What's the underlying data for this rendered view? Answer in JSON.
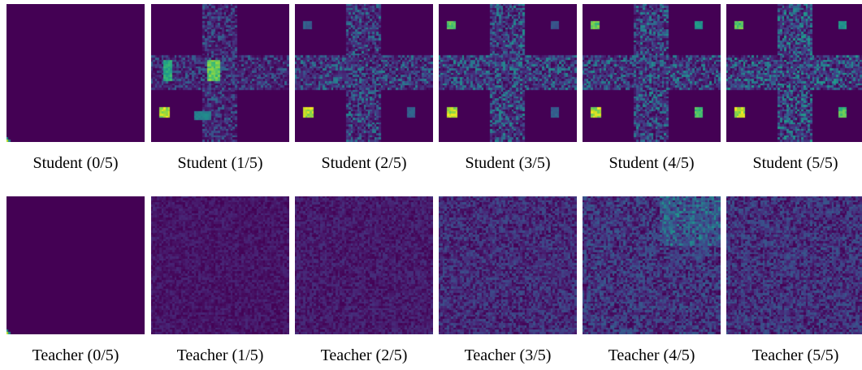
{
  "chart_data": [
    {
      "type": "heatmap",
      "title": "",
      "colormap": "viridis",
      "grid": false,
      "rows": [
        {
          "name": "Student",
          "panels": [
            {
              "label": "Student (0/5)",
              "pattern": "blank",
              "intensity": 0.0,
              "corner_hot": true
            },
            {
              "label": "Student (1/5)",
              "pattern": "cross-blocks",
              "intensity": 0.35,
              "hot_blocks": [
                "left-middle",
                "center-right",
                "bottom-left",
                "bottom-center"
              ]
            },
            {
              "label": "Student (2/5)",
              "pattern": "cross-blocks",
              "intensity": 0.45,
              "hot_blocks": [
                "top-left-faint",
                "bottom-left",
                "bottom-right-faint"
              ]
            },
            {
              "label": "Student (3/5)",
              "pattern": "cross-blocks",
              "intensity": 0.5,
              "hot_blocks": [
                "top-left",
                "top-right-faint",
                "bottom-left",
                "bottom-right-faint"
              ]
            },
            {
              "label": "Student (4/5)",
              "pattern": "cross-blocks",
              "intensity": 0.5,
              "hot_blocks": [
                "top-left",
                "top-right",
                "bottom-left",
                "bottom-right"
              ]
            },
            {
              "label": "Student (5/5)",
              "pattern": "cross-blocks",
              "intensity": 0.55,
              "hot_blocks": [
                "top-left",
                "top-right",
                "bottom-left",
                "bottom-right"
              ]
            }
          ]
        },
        {
          "name": "Teacher",
          "panels": [
            {
              "label": "Teacher (0/5)",
              "pattern": "blank",
              "intensity": 0.0,
              "corner_hot": true
            },
            {
              "label": "Teacher (1/5)",
              "pattern": "noise",
              "intensity": 0.12
            },
            {
              "label": "Teacher (2/5)",
              "pattern": "noise",
              "intensity": 0.15
            },
            {
              "label": "Teacher (3/5)",
              "pattern": "noise",
              "intensity": 0.25
            },
            {
              "label": "Teacher (4/5)",
              "pattern": "noise-top-right",
              "intensity": 0.3
            },
            {
              "label": "Teacher (5/5)",
              "pattern": "noise",
              "intensity": 0.28
            }
          ]
        }
      ]
    }
  ]
}
